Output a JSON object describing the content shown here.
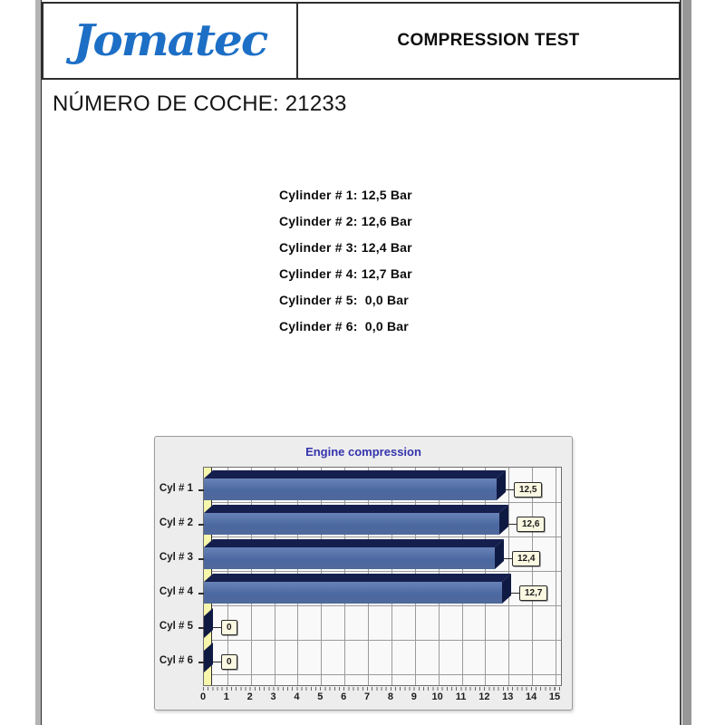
{
  "page": {
    "background": "#ffffff"
  },
  "header": {
    "logo_text": "Jomatec",
    "logo_color": "#1d6fc6",
    "title": "COMPRESSION TEST"
  },
  "car_number": {
    "text": "NÚMERO DE COCHE: 21233"
  },
  "cylinder_readings": [
    "Cylinder # 1: 12,5 Bar",
    "Cylinder # 2: 12,6 Bar",
    "Cylinder # 3: 12,4 Bar",
    "Cylinder # 4: 12,7 Bar",
    "Cylinder # 5:  0,0 Bar",
    "Cylinder # 6:  0,0 Bar"
  ],
  "chart_data": {
    "type": "bar",
    "orientation": "horizontal",
    "title": "Engine compression",
    "categories": [
      "Cyl # 1",
      "Cyl # 2",
      "Cyl # 3",
      "Cyl # 4",
      "Cyl # 5",
      "Cyl # 6"
    ],
    "values": [
      12.5,
      12.6,
      12.4,
      12.7,
      0,
      0
    ],
    "value_labels": [
      "12,5",
      "12,6",
      "12,4",
      "12,7",
      "0",
      "0"
    ],
    "xlabel": "",
    "ylabel": "",
    "xlim": [
      0,
      15
    ],
    "x_ticks": [
      0,
      1,
      2,
      3,
      4,
      5,
      6,
      7,
      8,
      9,
      10,
      11,
      12,
      13,
      14,
      15
    ],
    "grid": true,
    "legend": "none",
    "colors": {
      "title": "#3434ad",
      "bar_front_light": "#6883b6",
      "bar_front": "#4b68a1",
      "bar_front_deep": "#50699b",
      "bar_top": "#151f4e",
      "bar_cap": "#0f1a43",
      "wall": "#f6f6ac",
      "plot_bg": "#f9f9f9",
      "panel_bg": "#ededed",
      "grid_line": "#9a9a9a",
      "label_box_bg": "#fbf8e2",
      "label_box_border": "#2b2b2b"
    }
  }
}
